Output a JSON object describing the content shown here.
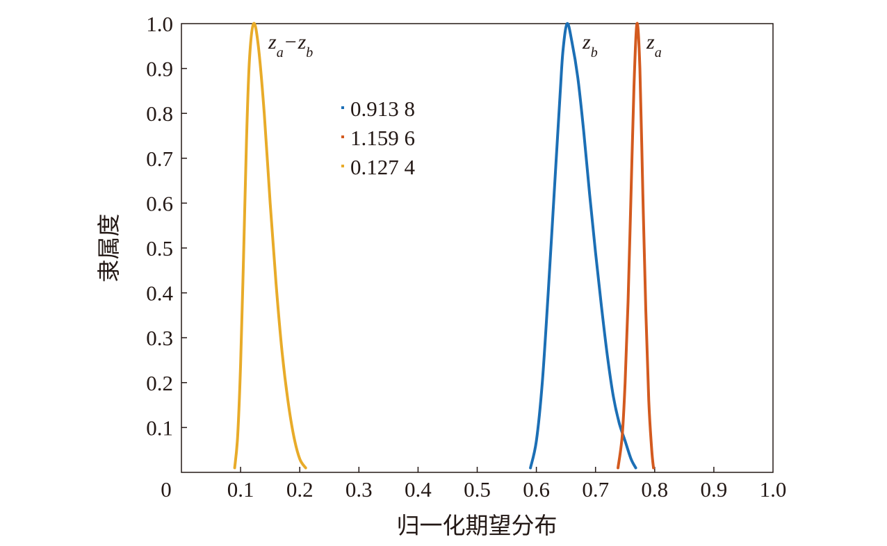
{
  "chart_data": {
    "type": "line",
    "xlabel": "归一化期望分布",
    "ylabel": "隶属度",
    "xlim": [
      0,
      1.0
    ],
    "ylim": [
      0,
      1.0
    ],
    "x_ticks": [
      "0",
      "0.1",
      "0.2",
      "0.3",
      "0.4",
      "0.5",
      "0.6",
      "0.7",
      "0.8",
      "0.9",
      "1.0"
    ],
    "y_ticks": [
      "0.1",
      "0.2",
      "0.3",
      "0.4",
      "0.5",
      "0.6",
      "0.7",
      "0.8",
      "0.9",
      "1.0"
    ],
    "grid": false,
    "legend": {
      "placement": "upper-center-left",
      "entries": [
        "0.913 8",
        "1.159 6",
        "0.127 4"
      ]
    },
    "series": [
      {
        "label": "z_b",
        "color": "#1c6fb5",
        "peak_x": 0.652,
        "points": [
          [
            0.59,
            0.01
          ],
          [
            0.6,
            0.07
          ],
          [
            0.61,
            0.2
          ],
          [
            0.62,
            0.4
          ],
          [
            0.63,
            0.62
          ],
          [
            0.64,
            0.84
          ],
          [
            0.645,
            0.94
          ],
          [
            0.652,
            1.0
          ],
          [
            0.66,
            0.96
          ],
          [
            0.67,
            0.88
          ],
          [
            0.68,
            0.76
          ],
          [
            0.69,
            0.62
          ],
          [
            0.7,
            0.49
          ],
          [
            0.71,
            0.37
          ],
          [
            0.72,
            0.26
          ],
          [
            0.73,
            0.17
          ],
          [
            0.74,
            0.11
          ],
          [
            0.75,
            0.07
          ],
          [
            0.76,
            0.03
          ],
          [
            0.768,
            0.01
          ]
        ]
      },
      {
        "label": "z_a",
        "color": "#d35a1f",
        "peak_x": 0.77,
        "points": [
          [
            0.738,
            0.01
          ],
          [
            0.745,
            0.08
          ],
          [
            0.75,
            0.2
          ],
          [
            0.755,
            0.38
          ],
          [
            0.76,
            0.62
          ],
          [
            0.765,
            0.86
          ],
          [
            0.77,
            1.0
          ],
          [
            0.775,
            0.9
          ],
          [
            0.78,
            0.62
          ],
          [
            0.785,
            0.36
          ],
          [
            0.79,
            0.16
          ],
          [
            0.795,
            0.05
          ],
          [
            0.798,
            0.01
          ]
        ]
      },
      {
        "label": "z_a−z_b",
        "color": "#e8ab29",
        "peak_x": 0.122,
        "points": [
          [
            0.09,
            0.01
          ],
          [
            0.095,
            0.08
          ],
          [
            0.1,
            0.24
          ],
          [
            0.105,
            0.48
          ],
          [
            0.11,
            0.74
          ],
          [
            0.115,
            0.92
          ],
          [
            0.122,
            1.0
          ],
          [
            0.13,
            0.95
          ],
          [
            0.14,
            0.8
          ],
          [
            0.15,
            0.6
          ],
          [
            0.16,
            0.42
          ],
          [
            0.17,
            0.27
          ],
          [
            0.18,
            0.16
          ],
          [
            0.19,
            0.08
          ],
          [
            0.2,
            0.03
          ],
          [
            0.21,
            0.01
          ]
        ]
      }
    ],
    "annotations": [
      {
        "base_a": "z",
        "sub_a": "a",
        "op": "−",
        "base_b": "z",
        "sub_b": "b"
      },
      {
        "base": "z",
        "sub": "b"
      },
      {
        "base": "z",
        "sub": "a"
      }
    ]
  }
}
